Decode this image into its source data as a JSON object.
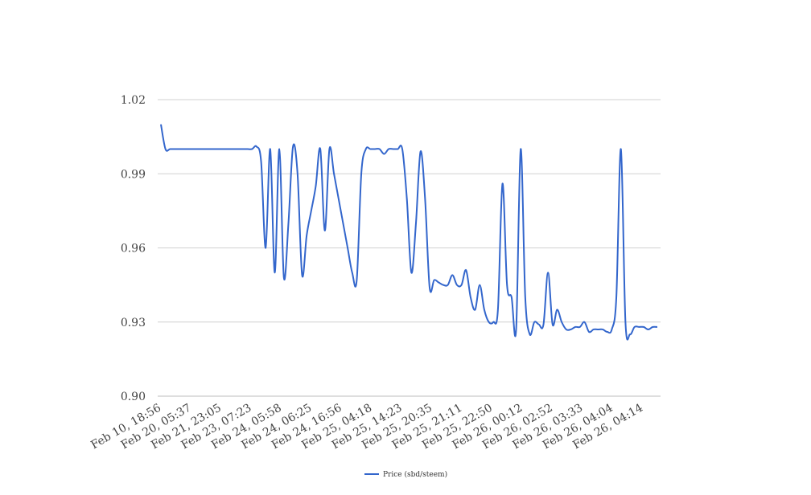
{
  "chart_data": {
    "type": "line",
    "title": "",
    "xlabel": "",
    "ylabel": "",
    "ylim": [
      0.9,
      1.02
    ],
    "yticks": [
      0.9,
      0.93,
      0.96,
      0.99,
      1.02
    ],
    "ytick_labels": [
      "0.90",
      "0.93",
      "0.96",
      "0.99",
      "1.02"
    ],
    "grid": true,
    "legend_position": "bottom-center",
    "x_tick_labels": [
      "Feb 10, 18:56",
      "Feb 20, 05:37",
      "Feb 21, 23:05",
      "Feb 23, 07:23",
      "Feb 24, 05:58",
      "Feb 24, 06:25",
      "Feb 24, 16:56",
      "Feb 25, 04:18",
      "Feb 25, 14:23",
      "Feb 25, 20:35",
      "Feb 25, 21:11",
      "Feb 25, 22:50",
      "Feb 26, 00:12",
      "Feb 26, 02:52",
      "Feb 26, 03:33",
      "Feb 26, 04:04",
      "Feb 26, 04:14"
    ],
    "series": [
      {
        "name": "Price (sbd/steem)",
        "color": "#3366cc",
        "values": [
          1.01,
          1.0,
          1.0,
          1.0,
          1.0,
          1.0,
          1.0,
          1.0,
          1.0,
          1.0,
          1.0,
          1.0,
          1.0,
          1.0,
          1.0,
          1.0,
          1.0,
          1.0,
          1.0,
          1.0,
          1.0,
          1.001,
          0.995,
          0.96,
          1.0,
          0.95,
          1.0,
          0.948,
          0.97,
          1.001,
          0.99,
          0.949,
          0.965,
          0.975,
          0.985,
          1.0,
          0.967,
          1.0,
          0.99,
          0.98,
          0.97,
          0.96,
          0.95,
          0.947,
          0.99,
          1.0,
          1.0,
          1.0,
          1.0,
          0.998,
          1.0,
          1.0,
          1.0,
          1.0,
          0.98,
          0.95,
          0.97,
          0.999,
          0.98,
          0.944,
          0.947,
          0.946,
          0.945,
          0.945,
          0.949,
          0.945,
          0.945,
          0.951,
          0.94,
          0.935,
          0.945,
          0.935,
          0.93,
          0.93,
          0.935,
          0.986,
          0.945,
          0.94,
          0.927,
          1.0,
          0.94,
          0.925,
          0.93,
          0.929,
          0.929,
          0.95,
          0.929,
          0.935,
          0.93,
          0.927,
          0.927,
          0.928,
          0.928,
          0.93,
          0.926,
          0.927,
          0.927,
          0.927,
          0.926,
          0.927,
          0.94,
          1.0,
          0.93,
          0.925,
          0.928,
          0.928,
          0.928,
          0.927,
          0.928,
          0.928
        ]
      }
    ]
  }
}
